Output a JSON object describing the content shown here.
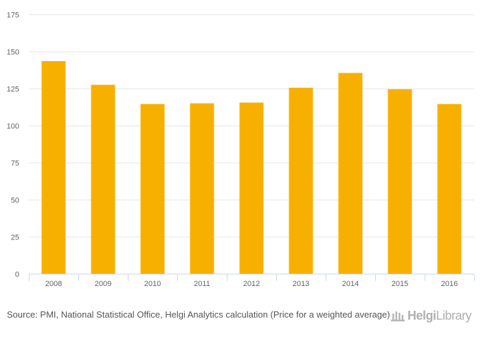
{
  "chart_data": {
    "type": "bar",
    "categories": [
      "2008",
      "2009",
      "2010",
      "2011",
      "2012",
      "2013",
      "2014",
      "2015",
      "2016"
    ],
    "values": [
      143.5,
      127.5,
      114.5,
      115,
      115.5,
      125.5,
      135.5,
      124.5,
      114.5
    ],
    "ylim": [
      0,
      175
    ],
    "yticks": [
      0,
      25,
      50,
      75,
      100,
      125,
      150,
      175
    ],
    "grid": true,
    "bar_color": "#F8B000"
  },
  "footer": {
    "source_text": "Source: PMI, National Statistical Office, Helgi Analytics calculation (Price for a weighted average)"
  },
  "logo": {
    "brand_bold": "Helgi",
    "brand_rest": "Library",
    "icon": "library-building-icon"
  }
}
